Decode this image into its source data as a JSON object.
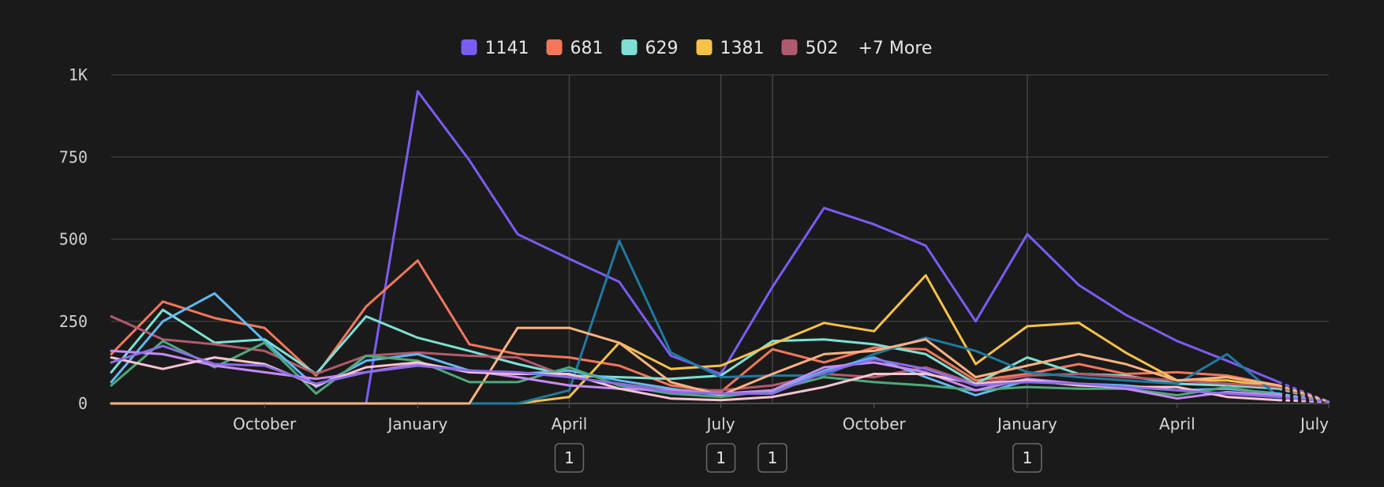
{
  "chart_data": {
    "type": "line",
    "title": "",
    "xlabel": "",
    "ylabel": "",
    "x": [
      "2023-07",
      "2023-08",
      "2023-09",
      "2023-10",
      "2023-11",
      "2023-12",
      "2024-01",
      "2024-02",
      "2024-03",
      "2024-04",
      "2024-05",
      "2024-06",
      "2024-07",
      "2024-08",
      "2024-09",
      "2024-10",
      "2024-11",
      "2024-12",
      "2025-01",
      "2025-02",
      "2025-03",
      "2025-04",
      "2025-05",
      "2025-06",
      "2025-07"
    ],
    "xlim": [
      "2023-07-01",
      "2025-07-01"
    ],
    "ylim": [
      0,
      1000
    ],
    "y_ticks": [
      {
        "value": 0,
        "label": "0"
      },
      {
        "value": 250,
        "label": "250"
      },
      {
        "value": 500,
        "label": "500"
      },
      {
        "value": 750,
        "label": "750"
      },
      {
        "value": 1000,
        "label": "1K"
      }
    ],
    "x_ticks": [
      {
        "date": "2023-10-01",
        "label": "October"
      },
      {
        "date": "2024-01-01",
        "label": "January"
      },
      {
        "date": "2024-04-01",
        "label": "April"
      },
      {
        "date": "2024-07-01",
        "label": "July"
      },
      {
        "date": "2024-10-01",
        "label": "October"
      },
      {
        "date": "2025-01-01",
        "label": "January"
      },
      {
        "date": "2025-04-01",
        "label": "April"
      },
      {
        "date": "2025-07-01",
        "label": "July"
      }
    ],
    "grid": true,
    "legend_position": "top-center",
    "legend_more": "+7 More",
    "annotations": [
      {
        "date": "2024-04-01",
        "label": "1"
      },
      {
        "date": "2024-07-01",
        "label": "1"
      },
      {
        "date": "2024-08-01",
        "label": "1"
      },
      {
        "date": "2025-01-01",
        "label": "1"
      }
    ],
    "incomplete_last_point": true,
    "series": [
      {
        "name": "1141",
        "color": "#7b5cf5",
        "values": [
          0,
          0,
          0,
          0,
          0,
          0,
          950,
          740,
          515,
          440,
          370,
          145,
          90,
          355,
          595,
          545,
          480,
          250,
          515,
          360,
          270,
          190,
          130,
          65,
          5
        ]
      },
      {
        "name": "681",
        "color": "#f4775a",
        "values": [
          150,
          310,
          260,
          230,
          85,
          295,
          435,
          180,
          150,
          140,
          115,
          55,
          35,
          165,
          125,
          170,
          165,
          70,
          90,
          120,
          90,
          95,
          85,
          55,
          5
        ]
      },
      {
        "name": "629",
        "color": "#7de0d4",
        "values": [
          95,
          285,
          185,
          195,
          90,
          265,
          200,
          160,
          120,
          85,
          80,
          75,
          85,
          190,
          195,
          180,
          150,
          60,
          140,
          90,
          85,
          60,
          55,
          45,
          5
        ]
      },
      {
        "name": "1381",
        "color": "#f7c14a",
        "values": [
          0,
          0,
          0,
          0,
          0,
          0,
          0,
          0,
          0,
          20,
          185,
          105,
          115,
          180,
          245,
          220,
          390,
          120,
          235,
          245,
          155,
          70,
          70,
          50,
          5
        ]
      },
      {
        "name": "502",
        "color": "#b25a6d",
        "values": [
          265,
          195,
          180,
          160,
          90,
          145,
          155,
          145,
          140,
          80,
          60,
          40,
          40,
          55,
          90,
          80,
          110,
          60,
          85,
          90,
          80,
          70,
          60,
          50,
          5
        ]
      },
      {
        "color": "#1f7aa0",
        "values": [
          0,
          0,
          0,
          0,
          0,
          0,
          0,
          0,
          0,
          40,
          495,
          155,
          80,
          85,
          85,
          150,
          200,
          160,
          95,
          80,
          70,
          60,
          150,
          20,
          5
        ]
      },
      {
        "color": "#5fb9f5",
        "values": [
          65,
          250,
          335,
          190,
          50,
          130,
          150,
          100,
          90,
          100,
          70,
          45,
          25,
          35,
          100,
          140,
          80,
          25,
          70,
          60,
          55,
          40,
          45,
          30,
          5
        ]
      },
      {
        "color": "#ffb380",
        "values": [
          0,
          0,
          0,
          0,
          0,
          0,
          0,
          0,
          230,
          230,
          185,
          65,
          25,
          90,
          150,
          160,
          195,
          80,
          115,
          150,
          120,
          70,
          80,
          55,
          5
        ]
      },
      {
        "color": "#4fa87a",
        "values": [
          55,
          190,
          110,
          185,
          30,
          145,
          130,
          65,
          65,
          110,
          55,
          30,
          20,
          40,
          80,
          65,
          55,
          40,
          50,
          45,
          45,
          25,
          50,
          25,
          5
        ]
      },
      {
        "color": "#c78af5",
        "values": [
          160,
          150,
          115,
          95,
          75,
          95,
          120,
          100,
          80,
          55,
          45,
          40,
          30,
          40,
          110,
          125,
          95,
          40,
          75,
          60,
          45,
          15,
          35,
          25,
          5
        ]
      },
      {
        "color": "#f9c4d2",
        "values": [
          140,
          105,
          140,
          120,
          55,
          110,
          125,
          95,
          90,
          90,
          45,
          15,
          10,
          20,
          50,
          90,
          90,
          60,
          70,
          55,
          50,
          50,
          20,
          10,
          5
        ]
      },
      {
        "color": "#8b6de8",
        "values": [
          125,
          175,
          120,
          115,
          60,
          95,
          115,
          100,
          95,
          80,
          60,
          35,
          30,
          30,
          95,
          135,
          105,
          55,
          65,
          60,
          50,
          40,
          30,
          20,
          5
        ]
      }
    ]
  }
}
